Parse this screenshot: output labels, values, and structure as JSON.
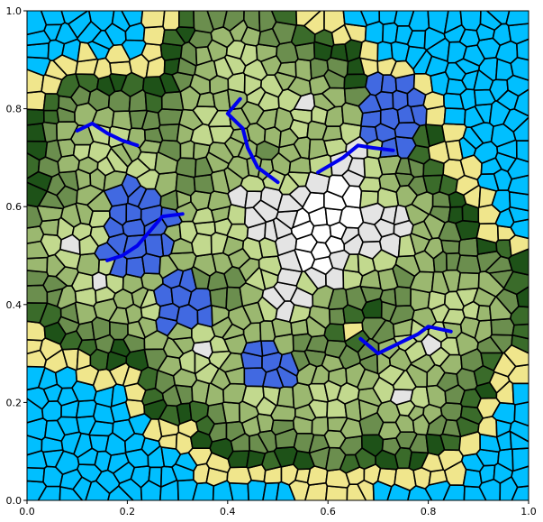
{
  "chart_data": {
    "type": "voronoi-map",
    "title": "",
    "xlabel": "",
    "ylabel": "",
    "xlim": [
      0.0,
      1.0
    ],
    "ylim": [
      0.0,
      1.0
    ],
    "x_ticks": [
      "0.0",
      "0.2",
      "0.4",
      "0.6",
      "0.8",
      "1.0"
    ],
    "y_ticks": [
      "0.0",
      "0.2",
      "0.4",
      "0.6",
      "0.8",
      "1.0"
    ],
    "grid": false,
    "legend": "none",
    "cell_colors": {
      "deep_water": "#1e90ff",
      "shallow_water": "#00bfff",
      "beach": "#f0e68c",
      "dark_forest": "#1e5218",
      "forest": "#3a6b2a",
      "mid_green": "#6b8e4e",
      "light_green": "#9bb870",
      "pale_green": "#c2d98e",
      "lake": "#4169e1",
      "mountain": "#e4e4e4",
      "snow": "#ffffff"
    },
    "rivers": {
      "color": "#0000ee",
      "paths": [
        [
          [
            0.1,
            0.755
          ],
          [
            0.13,
            0.77
          ],
          [
            0.16,
            0.75
          ],
          [
            0.19,
            0.735
          ],
          [
            0.22,
            0.725
          ]
        ],
        [
          [
            0.425,
            0.82
          ],
          [
            0.4,
            0.79
          ],
          [
            0.43,
            0.76
          ],
          [
            0.44,
            0.72
          ],
          [
            0.46,
            0.68
          ],
          [
            0.5,
            0.65
          ]
        ],
        [
          [
            0.58,
            0.67
          ],
          [
            0.63,
            0.7
          ],
          [
            0.66,
            0.725
          ],
          [
            0.69,
            0.72
          ],
          [
            0.73,
            0.715
          ]
        ],
        [
          [
            0.16,
            0.49
          ],
          [
            0.19,
            0.5
          ],
          [
            0.22,
            0.52
          ],
          [
            0.27,
            0.58
          ],
          [
            0.31,
            0.585
          ]
        ],
        [
          [
            0.665,
            0.33
          ],
          [
            0.7,
            0.3
          ],
          [
            0.74,
            0.32
          ],
          [
            0.78,
            0.34
          ],
          [
            0.8,
            0.355
          ],
          [
            0.845,
            0.345
          ]
        ]
      ]
    }
  }
}
